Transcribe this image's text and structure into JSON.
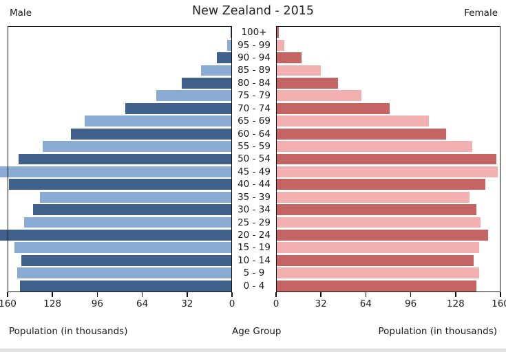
{
  "header": {
    "title": "New Zealand - 2015",
    "left_label": "Male",
    "right_label": "Female"
  },
  "axis": {
    "left_ticks": [
      "160",
      "128",
      "96",
      "64",
      "32",
      "0"
    ],
    "right_ticks": [
      "0",
      "32",
      "64",
      "96",
      "128",
      "160"
    ],
    "left_axis_label": "Population (in thousands)",
    "center_axis_label": "Age Group",
    "right_axis_label": "Population (in thousands)"
  },
  "colors": {
    "male_dark": "#3f618c",
    "male_light": "#8aabd3",
    "female_dark": "#c56563",
    "female_light": "#f3b0b0",
    "axis_line": "#111111"
  },
  "chart_data": {
    "type": "bar",
    "subtype": "population_pyramid",
    "title": "New Zealand - 2015",
    "xlabel_left": "Population (in thousands)",
    "xlabel_right": "Population (in thousands)",
    "center_label": "Age Group",
    "x_max": 160,
    "x_unit": "thousands of people",
    "tick_step": 32,
    "legend_position": "top-corners",
    "grid": false,
    "note": "Male 20-24 and 45-49 bars overflow past the 160 axis limit (clipped at image edge)",
    "rows": [
      {
        "age": "100+",
        "male": 1,
        "female": 2
      },
      {
        "age": "95 - 99",
        "male": 3.5,
        "female": 6
      },
      {
        "age": "90 - 94",
        "male": 11,
        "female": 18
      },
      {
        "age": "85 - 89",
        "male": 22,
        "female": 32
      },
      {
        "age": "80 - 84",
        "male": 36,
        "female": 44
      },
      {
        "age": "75 - 79",
        "male": 54,
        "female": 61
      },
      {
        "age": "70 - 74",
        "male": 76,
        "female": 81
      },
      {
        "age": "65 - 69",
        "male": 105,
        "female": 109
      },
      {
        "age": "60 - 64",
        "male": 115,
        "female": 121
      },
      {
        "age": "55 - 59",
        "male": 135,
        "female": 140
      },
      {
        "age": "50 - 54",
        "male": 152,
        "female": 157
      },
      {
        "age": "45 - 49",
        "male": 166,
        "female": 158
      },
      {
        "age": "40 - 44",
        "male": 159,
        "female": 149
      },
      {
        "age": "35 - 39",
        "male": 137,
        "female": 138
      },
      {
        "age": "30 - 34",
        "male": 142,
        "female": 143
      },
      {
        "age": "25 - 29",
        "male": 148,
        "female": 146
      },
      {
        "age": "20 - 24",
        "male": 166,
        "female": 151
      },
      {
        "age": "15 - 19",
        "male": 155,
        "female": 145
      },
      {
        "age": "10 - 14",
        "male": 150,
        "female": 141
      },
      {
        "age": "5 - 9",
        "male": 153,
        "female": 145
      },
      {
        "age": "0 - 4",
        "male": 151,
        "female": 143
      }
    ]
  }
}
